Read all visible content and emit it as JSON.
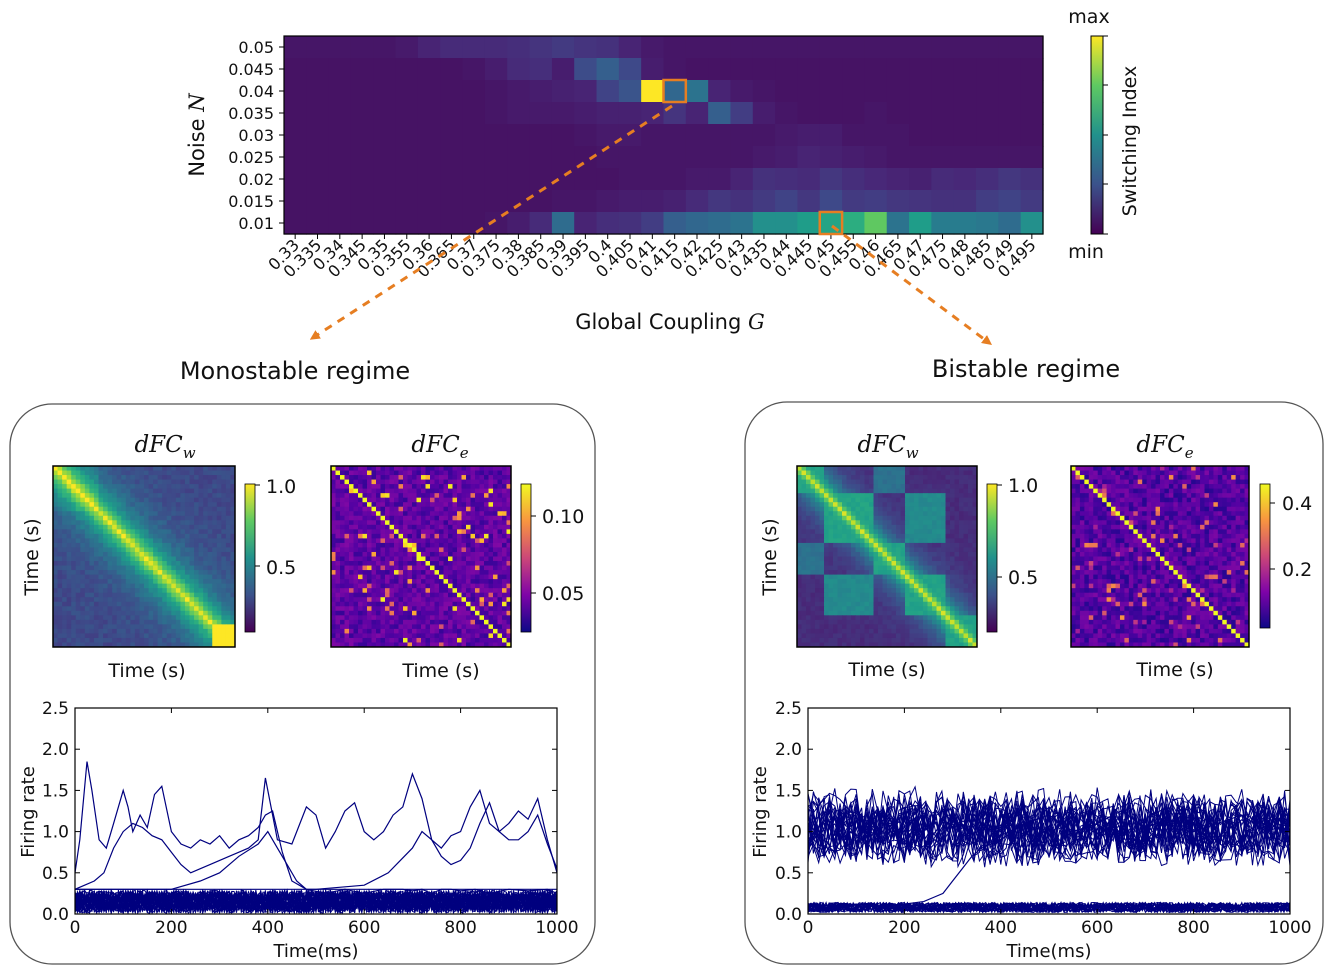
{
  "chart_data": [
    {
      "type": "heatmap",
      "xlabel_prefix": "Global Coupling",
      "xlabel_symbol": "G",
      "ylabel_prefix": "Noise",
      "ylabel_symbol": "N",
      "x": [
        "0.33",
        "0.335",
        "0.34",
        "0.345",
        "0.35",
        "0.355",
        "0.36",
        "0.365",
        "0.37",
        "0.375",
        "0.38",
        "0.385",
        "0.39",
        "0.395",
        "0.4",
        "0.405",
        "0.41",
        "0.415",
        "0.42",
        "0.425",
        "0.43",
        "0.435",
        "0.44",
        "0.445",
        "0.45",
        "0.455",
        "0.46",
        "0.465",
        "0.47",
        "0.475",
        "0.48",
        "0.485",
        "0.49",
        "0.495"
      ],
      "y": [
        "0.05",
        "0.045",
        "0.04",
        "0.035",
        "0.03",
        "0.025",
        "0.02",
        "0.015",
        "0.01"
      ],
      "values": [
        [
          0.06,
          0.06,
          0.06,
          0.06,
          0.06,
          0.07,
          0.1,
          0.12,
          0.12,
          0.12,
          0.13,
          0.15,
          0.17,
          0.15,
          0.14,
          0.1,
          0.07,
          0.06,
          0.06,
          0.06,
          0.06,
          0.06,
          0.06,
          0.06,
          0.06,
          0.06,
          0.06,
          0.06,
          0.06,
          0.06,
          0.06,
          0.06,
          0.06,
          0.06
        ],
        [
          0.05,
          0.05,
          0.05,
          0.05,
          0.05,
          0.05,
          0.05,
          0.05,
          0.06,
          0.08,
          0.12,
          0.13,
          0.08,
          0.23,
          0.3,
          0.22,
          0.08,
          0.06,
          0.05,
          0.05,
          0.05,
          0.05,
          0.05,
          0.05,
          0.05,
          0.05,
          0.05,
          0.05,
          0.05,
          0.05,
          0.05,
          0.05,
          0.05,
          0.05
        ],
        [
          0.05,
          0.05,
          0.05,
          0.05,
          0.05,
          0.05,
          0.05,
          0.05,
          0.05,
          0.06,
          0.07,
          0.08,
          0.09,
          0.1,
          0.2,
          0.26,
          1.0,
          0.33,
          0.38,
          0.1,
          0.07,
          0.06,
          0.05,
          0.05,
          0.05,
          0.05,
          0.05,
          0.05,
          0.05,
          0.05,
          0.05,
          0.05,
          0.05,
          0.05
        ],
        [
          0.05,
          0.05,
          0.05,
          0.05,
          0.05,
          0.05,
          0.05,
          0.05,
          0.05,
          0.06,
          0.07,
          0.07,
          0.07,
          0.08,
          0.09,
          0.09,
          0.1,
          0.15,
          0.1,
          0.3,
          0.18,
          0.08,
          0.06,
          0.05,
          0.05,
          0.05,
          0.06,
          0.05,
          0.05,
          0.05,
          0.05,
          0.05,
          0.05,
          0.05
        ],
        [
          0.05,
          0.05,
          0.05,
          0.05,
          0.05,
          0.05,
          0.05,
          0.05,
          0.05,
          0.05,
          0.05,
          0.05,
          0.05,
          0.06,
          0.07,
          0.07,
          0.06,
          0.06,
          0.06,
          0.06,
          0.06,
          0.06,
          0.07,
          0.08,
          0.08,
          0.06,
          0.06,
          0.06,
          0.05,
          0.05,
          0.05,
          0.05,
          0.05,
          0.05
        ],
        [
          0.05,
          0.05,
          0.05,
          0.05,
          0.05,
          0.05,
          0.05,
          0.05,
          0.05,
          0.05,
          0.05,
          0.05,
          0.05,
          0.05,
          0.06,
          0.06,
          0.06,
          0.06,
          0.06,
          0.06,
          0.06,
          0.07,
          0.08,
          0.1,
          0.09,
          0.08,
          0.07,
          0.06,
          0.06,
          0.06,
          0.06,
          0.06,
          0.06,
          0.06
        ],
        [
          0.05,
          0.05,
          0.05,
          0.05,
          0.05,
          0.05,
          0.05,
          0.05,
          0.05,
          0.05,
          0.05,
          0.05,
          0.05,
          0.05,
          0.05,
          0.06,
          0.06,
          0.06,
          0.07,
          0.07,
          0.1,
          0.14,
          0.13,
          0.12,
          0.16,
          0.13,
          0.11,
          0.1,
          0.09,
          0.12,
          0.11,
          0.13,
          0.16,
          0.14
        ],
        [
          0.05,
          0.05,
          0.05,
          0.05,
          0.05,
          0.05,
          0.05,
          0.05,
          0.05,
          0.05,
          0.05,
          0.05,
          0.06,
          0.06,
          0.07,
          0.08,
          0.08,
          0.09,
          0.12,
          0.16,
          0.14,
          0.17,
          0.2,
          0.16,
          0.22,
          0.17,
          0.18,
          0.16,
          0.15,
          0.14,
          0.14,
          0.18,
          0.2,
          0.17
        ],
        [
          0.05,
          0.05,
          0.05,
          0.05,
          0.05,
          0.05,
          0.05,
          0.05,
          0.05,
          0.06,
          0.08,
          0.12,
          0.35,
          0.1,
          0.13,
          0.14,
          0.18,
          0.3,
          0.33,
          0.35,
          0.38,
          0.5,
          0.5,
          0.55,
          0.58,
          0.62,
          0.75,
          0.38,
          0.55,
          0.42,
          0.42,
          0.4,
          0.35,
          0.5
        ]
      ],
      "colorbar_label": "Switching Index",
      "colorbar_max": "max",
      "colorbar_min": "min",
      "highlight_cells": [
        {
          "x": "0.415",
          "y": "0.04",
          "regime": "monostable"
        },
        {
          "x": "0.45",
          "y": "0.01",
          "regime": "bistable"
        }
      ]
    },
    {
      "panel": "monostable",
      "title": "Monostable regime",
      "matrix_w": {
        "type": "heatmap",
        "title_main": "dFC",
        "title_sub": "w",
        "xlabel": "Time (s)",
        "ylabel": "Time (s)",
        "colorbar_ticks": [
          "1.0",
          "0.5"
        ],
        "colormap": "viridis"
      },
      "matrix_e": {
        "type": "heatmap",
        "title_main": "dFC",
        "title_sub": "e",
        "xlabel": "Time (s)",
        "colorbar_ticks": [
          "0.10",
          "0.05"
        ],
        "colormap": "plasma"
      },
      "firing": {
        "type": "line",
        "xlabel": "Time(ms)",
        "ylabel": "Firing rate",
        "xlim": [
          0,
          1000
        ],
        "ylim": [
          0,
          2.5
        ],
        "xticks": [
          "0",
          "200",
          "400",
          "600",
          "800",
          "1000"
        ],
        "yticks": [
          "0.0",
          "0.5",
          "1.0",
          "1.5",
          "2.0",
          "2.5"
        ],
        "line_color": "#00007f",
        "series": [
          {
            "x": [
              0,
              10,
              25,
              35,
              50,
              65,
              80,
              100,
              110,
              120,
              135,
              150,
              165,
              180,
              200,
              220,
              240,
              260,
              280,
              300,
              320,
              340,
              360,
              380,
              395,
              410,
              430,
              450,
              480,
              520,
              560,
              600,
              640,
              680,
              700,
              720,
              740,
              760,
              780,
              800,
              830,
              860,
              900,
              940,
              980,
              1000
            ],
            "values": [
              0.5,
              0.9,
              1.85,
              1.5,
              0.9,
              0.8,
              1.1,
              1.5,
              1.3,
              1.0,
              1.2,
              1.05,
              1.45,
              1.55,
              1.0,
              0.85,
              0.8,
              0.9,
              0.85,
              0.95,
              0.8,
              0.9,
              0.95,
              1.05,
              1.2,
              1.25,
              0.75,
              0.4,
              0.3,
              0.25,
              0.3,
              0.25,
              0.3,
              0.3,
              0.28,
              0.3,
              0.25,
              0.3,
              0.3,
              0.28,
              0.3,
              0.25,
              0.3,
              0.28,
              0.3,
              0.25
            ]
          },
          {
            "x": [
              0,
              20,
              40,
              60,
              80,
              100,
              120,
              140,
              160,
              180,
              200,
              220,
              240,
              260,
              280,
              300,
              320,
              340,
              360,
              380,
              395,
              420,
              450,
              480,
              500,
              520,
              540,
              560,
              580,
              600,
              620,
              640,
              660,
              680,
              700,
              720,
              740,
              760,
              780,
              800,
              820,
              840,
              860,
              880,
              900,
              920,
              940,
              960,
              980,
              1000
            ],
            "values": [
              0.3,
              0.35,
              0.4,
              0.5,
              0.8,
              1.0,
              1.1,
              1.05,
              0.95,
              0.9,
              0.75,
              0.6,
              0.5,
              0.55,
              0.6,
              0.65,
              0.7,
              0.75,
              0.8,
              0.9,
              1.65,
              0.9,
              0.85,
              1.3,
              1.2,
              0.8,
              1.0,
              1.25,
              1.35,
              1.0,
              0.9,
              1.0,
              1.2,
              1.3,
              1.7,
              1.4,
              0.9,
              0.8,
              0.95,
              1.0,
              1.3,
              1.5,
              1.1,
              1.0,
              1.1,
              1.25,
              1.15,
              1.4,
              0.9,
              0.5
            ]
          },
          {
            "x": [
              0,
              100,
              200,
              260,
              300,
              340,
              380,
              400,
              420,
              440,
              460,
              480,
              500,
              520,
              540,
              560,
              600,
              650,
              700,
              750,
              800,
              850,
              900,
              950,
              1000
            ],
            "values": [
              0.3,
              0.3,
              0.3,
              0.4,
              0.5,
              0.7,
              0.85,
              1.0,
              0.8,
              0.6,
              0.4,
              0.3,
              0.3,
              0.3,
              0.3,
              0.3,
              0.3,
              0.3,
              0.3,
              0.3,
              0.3,
              0.3,
              0.3,
              0.3,
              0.3
            ]
          },
          {
            "x": [
              0,
              100,
              200,
              300,
              400,
              500,
              600,
              650,
              700,
              720,
              740,
              760,
              780,
              800,
              820,
              840,
              860,
              880,
              900,
              920,
              940,
              960,
              980,
              1000
            ],
            "values": [
              0.3,
              0.3,
              0.3,
              0.3,
              0.3,
              0.3,
              0.35,
              0.5,
              0.8,
              1.0,
              0.9,
              0.7,
              0.6,
              0.65,
              0.8,
              1.1,
              1.35,
              1.0,
              0.9,
              0.9,
              1.0,
              1.2,
              0.85,
              0.55
            ]
          }
        ]
      }
    },
    {
      "panel": "bistable",
      "title": "Bistable regime",
      "matrix_w": {
        "type": "heatmap",
        "title_main": "dFC",
        "title_sub": "w",
        "xlabel": "Time (s)",
        "ylabel": "Time (s)",
        "colorbar_ticks": [
          "1.0",
          "0.5"
        ],
        "colormap": "viridis"
      },
      "matrix_e": {
        "type": "heatmap",
        "title_main": "dFC",
        "title_sub": "e",
        "xlabel": "Time (s)",
        "colorbar_ticks": [
          "0.4",
          "0.2"
        ],
        "colormap": "plasma"
      },
      "firing": {
        "type": "line",
        "xlabel": "Time(ms)",
        "ylabel": "Firing rate",
        "xlim": [
          0,
          1000
        ],
        "ylim": [
          0,
          2.5
        ],
        "xticks": [
          "0",
          "200",
          "400",
          "600",
          "800",
          "1000"
        ],
        "yticks": [
          "0.0",
          "0.5",
          "1.0",
          "1.5",
          "2.0",
          "2.5"
        ],
        "line_color": "#00007f",
        "series": [
          {
            "x": [
              0,
              50,
              100,
              150,
              200,
              240,
              260,
              280,
              300,
              320,
              340,
              360,
              380,
              400,
              450,
              500,
              550,
              600,
              650,
              700,
              750,
              800,
              850,
              900,
              950,
              1000
            ],
            "values": [
              0.1,
              0.1,
              0.12,
              0.1,
              0.12,
              0.15,
              0.2,
              0.25,
              0.4,
              0.55,
              0.7,
              0.8,
              0.85,
              0.9,
              1.1,
              1.2,
              1.0,
              1.1,
              1.25,
              1.05,
              1.15,
              1.0,
              1.1,
              1.2,
              1.0,
              1.1
            ]
          }
        ]
      }
    }
  ]
}
